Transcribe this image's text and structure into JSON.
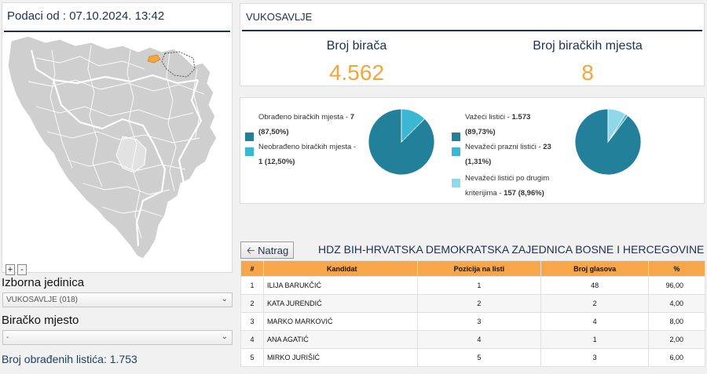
{
  "left": {
    "title": "Podaci od : 07.10.2024. 13:42",
    "zoom_in": "+",
    "zoom_out": "-",
    "constituency_label": "Izborna jedinica",
    "constituency_value": "VUKOSAVLJE (018)",
    "polling_station_label": "Biračko mjesto",
    "polling_station_value": "-",
    "processed_ballots": "Broj obrađenih listića: 1.753"
  },
  "summary": {
    "municipality": "VUKOSAVLJE",
    "voters_label": "Broj birača",
    "voters_value": "4.562",
    "stations_label": "Broj biračkih mjesta",
    "stations_value": "8"
  },
  "stations_chart": {
    "processed_label": "Obrađeno biračkih mjesta - ",
    "processed_value": "7",
    "processed_pct": "(87,50%)",
    "unprocessed_label": "Neobrađeno biračkih mjesta - ",
    "unprocessed_value": "1 (12,50%)"
  },
  "ballots_chart": {
    "valid_label": "Važeći listići - ",
    "valid_value": "1.573",
    "valid_pct": "(89,73%)",
    "blank_label": "Nevažeći prazni listići - ",
    "blank_value": "23",
    "blank_pct": "(1,31%)",
    "other_label_1": "Nevažeći listići po drugim",
    "other_label_2": "kriterijima - ",
    "other_value": "157 (8,96%)"
  },
  "chart_data": [
    {
      "type": "pie",
      "labels": [
        "Obrađeno biračkih mjesta",
        "Neobrađeno biračkih mjesta"
      ],
      "values": [
        87.5,
        12.5
      ],
      "colors": [
        "#23809b",
        "#3bb6d3"
      ]
    },
    {
      "type": "pie",
      "labels": [
        "Važeći listići",
        "Nevažeći prazni listići",
        "Nevažeći listići po drugim kriterijima"
      ],
      "values": [
        89.73,
        1.31,
        8.96
      ],
      "colors": [
        "#23809b",
        "#3bb6d3",
        "#8fd7ea"
      ]
    }
  ],
  "results": {
    "back_label": "Natrag",
    "party": "HDZ BIH-HRVATSKA DEMOKRATSKA ZAJEDNICA BOSNE I HERCEGOVINE",
    "columns": [
      "#",
      "Kandidat",
      "Pozicija na listi",
      "Broj glasova",
      "%"
    ],
    "rows": [
      [
        "1",
        "ILIJA BARUKČIĆ",
        "1",
        "48",
        "96,00"
      ],
      [
        "2",
        "KATA JURENDIĆ",
        "2",
        "2",
        "4,00"
      ],
      [
        "3",
        "MARKO MARKOVIĆ",
        "3",
        "4",
        "8,00"
      ],
      [
        "4",
        "ANA AGATIĆ",
        "4",
        "1",
        "2,00"
      ],
      [
        "5",
        "MIRKO JURIŠIĆ",
        "5",
        "3",
        "6,00"
      ]
    ]
  },
  "colors": {
    "accent": "#f5a53b",
    "navy": "#1e2f4f",
    "teal": "#23809b",
    "light_blue": "#3bb6d3",
    "pale_blue": "#8fd7ea"
  }
}
